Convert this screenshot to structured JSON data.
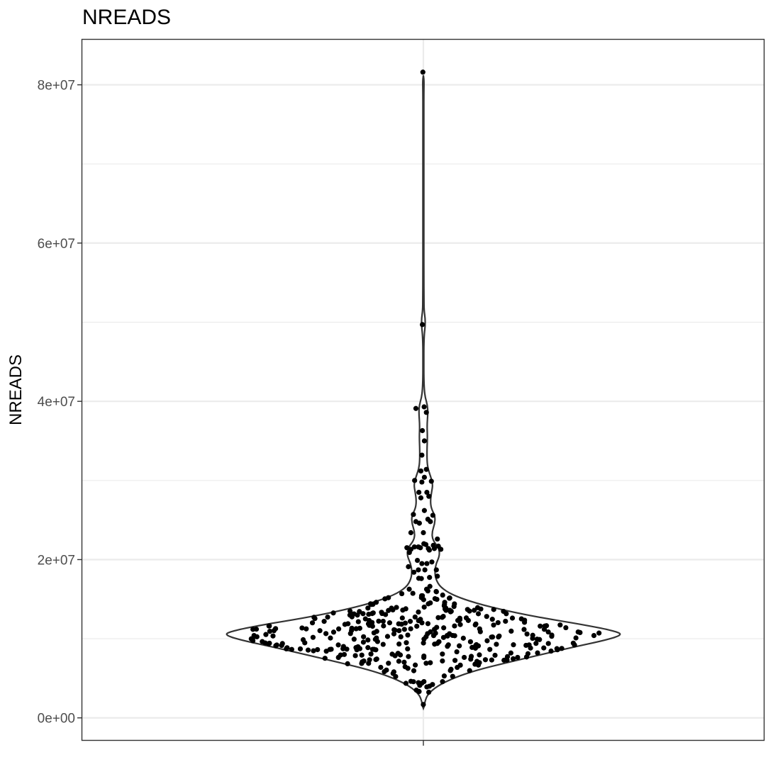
{
  "chart_data": {
    "type": "violin",
    "title": "NREADS",
    "ylabel": "NREADS",
    "xlabel": "",
    "ylim": [
      -2800000,
      85700000
    ],
    "yticks": [
      {
        "value": 0,
        "label": "0e+00"
      },
      {
        "value": 20000000,
        "label": "2e+07"
      },
      {
        "value": 40000000,
        "label": "4e+07"
      },
      {
        "value": 60000000,
        "label": "6e+07"
      },
      {
        "value": 80000000,
        "label": "8e+07"
      }
    ],
    "y_minor_grid": [
      10000000,
      30000000,
      50000000,
      70000000
    ],
    "grid": true,
    "theme": "bw",
    "violin_colors": {
      "fill": "#ffffff",
      "outline": "#333333"
    },
    "point_color": "#000000",
    "violin_density": [
      [
        1200000,
        0.0
      ],
      [
        1500000,
        0.004
      ],
      [
        2200000,
        0.008
      ],
      [
        3000000,
        0.02
      ],
      [
        4000000,
        0.06
      ],
      [
        5000000,
        0.13
      ],
      [
        6000000,
        0.23
      ],
      [
        7000000,
        0.37
      ],
      [
        8000000,
        0.52
      ],
      [
        9000000,
        0.67
      ],
      [
        9800000,
        0.8
      ],
      [
        10500000,
        0.88
      ],
      [
        11000000,
        0.84
      ],
      [
        11800000,
        0.7
      ],
      [
        12600000,
        0.53
      ],
      [
        13500000,
        0.37
      ],
      [
        14500000,
        0.23
      ],
      [
        15500000,
        0.13
      ],
      [
        16500000,
        0.075
      ],
      [
        17500000,
        0.055
      ],
      [
        18500000,
        0.05
      ],
      [
        19500000,
        0.056
      ],
      [
        20500000,
        0.072
      ],
      [
        21500000,
        0.068
      ],
      [
        22500000,
        0.04
      ],
      [
        23500000,
        0.038
      ],
      [
        24500000,
        0.05
      ],
      [
        25500000,
        0.052
      ],
      [
        26500000,
        0.034
      ],
      [
        27500000,
        0.031
      ],
      [
        28500000,
        0.036
      ],
      [
        29500000,
        0.042
      ],
      [
        30500000,
        0.032
      ],
      [
        31500000,
        0.02
      ],
      [
        32500000,
        0.016
      ],
      [
        34000000,
        0.016
      ],
      [
        35500000,
        0.018
      ],
      [
        37000000,
        0.016
      ],
      [
        38500000,
        0.02
      ],
      [
        39500000,
        0.018
      ],
      [
        40500000,
        0.008
      ],
      [
        41500000,
        0.004
      ],
      [
        43000000,
        0.002
      ],
      [
        45000000,
        0.002
      ],
      [
        47000000,
        0.002
      ],
      [
        48500000,
        0.004
      ],
      [
        49500000,
        0.008
      ],
      [
        50500000,
        0.008
      ],
      [
        51500000,
        0.003
      ],
      [
        53000000,
        0.0025
      ],
      [
        56000000,
        0.002
      ],
      [
        60000000,
        0.002
      ],
      [
        65000000,
        0.002
      ],
      [
        70000000,
        0.002
      ],
      [
        75000000,
        0.002
      ],
      [
        79000000,
        0.002
      ],
      [
        80500000,
        0.003
      ],
      [
        81200000,
        0.0
      ]
    ],
    "points": [
      [
        -0.002,
        81600000
      ],
      [
        -0.004,
        49700000
      ],
      [
        -0.03,
        39100000
      ],
      [
        0.003,
        39300000
      ],
      [
        0.012,
        38600000
      ],
      [
        -0.004,
        36300000
      ],
      [
        0.004,
        35000000
      ],
      [
        -0.006,
        33200000
      ],
      [
        -0.01,
        31200000
      ],
      [
        0.012,
        31400000
      ],
      [
        -0.035,
        30000000
      ],
      [
        -0.006,
        29800000
      ],
      [
        0.004,
        30400000
      ],
      [
        0.032,
        29900000
      ],
      [
        -0.018,
        28500000
      ],
      [
        0.014,
        28500000
      ],
      [
        0.022,
        28000000
      ],
      [
        -0.01,
        27800000
      ],
      [
        0.004,
        26200000
      ],
      [
        0.038,
        25600000
      ],
      [
        -0.04,
        25700000
      ],
      [
        -0.03,
        24800000
      ],
      [
        -0.016,
        24600000
      ],
      [
        0.018,
        25100000
      ],
      [
        0.028,
        24800000
      ],
      [
        -0.05,
        23400000
      ],
      [
        0.0,
        23400000
      ],
      [
        0.056,
        22600000
      ],
      [
        -0.066,
        21500000
      ],
      [
        -0.05,
        21300000
      ],
      [
        -0.02,
        21600000
      ],
      [
        0.002,
        22000000
      ],
      [
        0.02,
        21400000
      ],
      [
        0.04,
        21800000
      ],
      [
        0.06,
        21700000
      ],
      [
        0.07,
        21300000
      ],
      [
        -0.056,
        20900000
      ],
      [
        -0.036,
        21600000
      ],
      [
        -0.012,
        21500000
      ],
      [
        0.01,
        21900000
      ],
      [
        0.024,
        21200000
      ],
      [
        0.044,
        21400000
      ],
      [
        -0.024,
        19900000
      ],
      [
        -0.006,
        19500000
      ],
      [
        0.034,
        19700000
      ],
      [
        -0.06,
        19100000
      ],
      [
        -0.038,
        18400000
      ],
      [
        0.006,
        18700000
      ],
      [
        0.052,
        18700000
      ],
      [
        -0.02,
        18700000
      ],
      [
        0.014,
        19500000
      ],
      [
        0.056,
        17900000
      ]
    ],
    "core_points_seed": 12345,
    "core_points_count": 360
  }
}
